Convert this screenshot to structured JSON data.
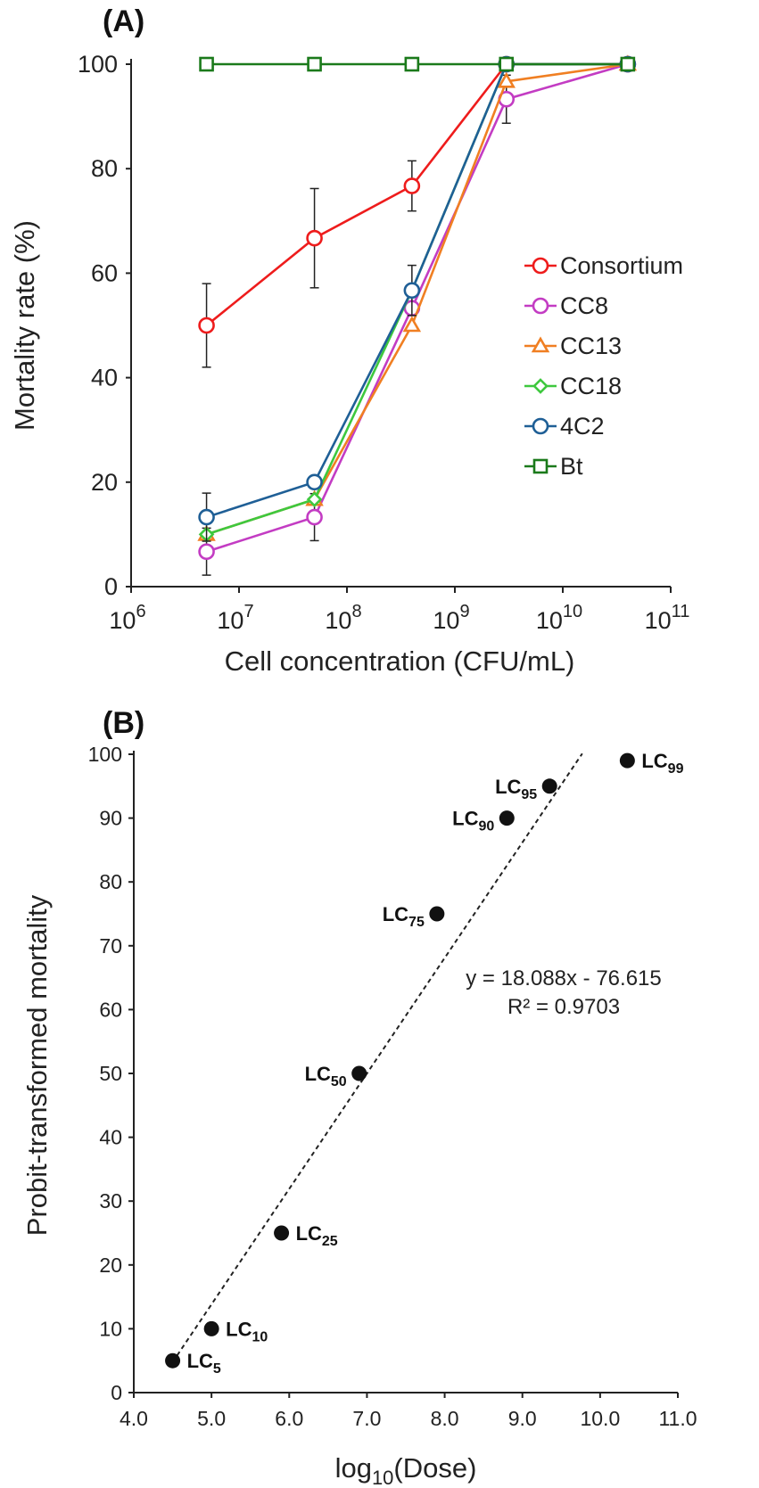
{
  "chart_data": [
    {
      "panel_label": "(A)",
      "type": "line",
      "xscale": "log10",
      "xlabel": "Cell concentration (CFU/mL)",
      "ylabel": "Mortality rate (%)",
      "xlim_exp": [
        6,
        11
      ],
      "xtick_base": "10",
      "xtick_exponents": [
        "6",
        "7",
        "8",
        "9",
        "10",
        "11"
      ],
      "ylim": [
        0,
        100
      ],
      "yticks": [
        "0",
        "20",
        "40",
        "60",
        "80",
        "100"
      ],
      "legend_position": "right",
      "x": [
        5000000,
        50000000,
        400000000,
        3000000000,
        40000000000
      ],
      "series": [
        {
          "name": "Consortium",
          "color": "#ee1c1c",
          "marker": "circle",
          "values": [
            50,
            66.7,
            76.7,
            100,
            100
          ],
          "errors": [
            8,
            9.5,
            4.8,
            0,
            0
          ]
        },
        {
          "name": "CC8",
          "color": "#c33cc3",
          "marker": "circle",
          "values": [
            6.7,
            13.3,
            53.3,
            93.3,
            100
          ],
          "errors": [
            4.5,
            4.5,
            0,
            4.6,
            0
          ]
        },
        {
          "name": "CC13",
          "color": "#f07f22",
          "marker": "triangle",
          "values": [
            10,
            16.7,
            50,
            96.7,
            100
          ],
          "errors": [
            0,
            0,
            0,
            0,
            0
          ]
        },
        {
          "name": "CC18",
          "color": "#3ec83e",
          "marker": "diamond",
          "values": [
            10,
            16.7,
            56.7,
            100,
            100
          ],
          "errors": [
            0,
            0,
            0,
            0,
            0
          ]
        },
        {
          "name": "4C2",
          "color": "#1f5f96",
          "marker": "circle",
          "values": [
            13.3,
            20,
            56.7,
            100,
            100
          ],
          "errors": [
            4.6,
            0,
            4.8,
            0,
            0
          ]
        },
        {
          "name": "Bt",
          "color": "#1b7a1b",
          "marker": "square",
          "values": [
            100,
            100,
            100,
            100,
            100
          ],
          "errors": [
            0,
            0,
            0,
            0,
            0
          ]
        }
      ]
    },
    {
      "panel_label": "(B)",
      "type": "scatter",
      "xlabel_base": "log",
      "xlabel_sub": "10",
      "xlabel_rest": "(Dose)",
      "ylabel": "Probit-transformed mortality",
      "xlim": [
        4.0,
        11.0
      ],
      "ylim": [
        0,
        100
      ],
      "xticks": [
        "4.0",
        "5.0",
        "6.0",
        "7.0",
        "8.0",
        "9.0",
        "10.0",
        "11.0"
      ],
      "yticks": [
        "0",
        "10",
        "20",
        "30",
        "40",
        "50",
        "60",
        "70",
        "80",
        "90",
        "100"
      ],
      "points": [
        {
          "label": "LC",
          "sub": "5",
          "x": 4.5,
          "y": 5,
          "side": "right"
        },
        {
          "label": "LC",
          "sub": "10",
          "x": 5.0,
          "y": 10,
          "side": "right"
        },
        {
          "label": "LC",
          "sub": "25",
          "x": 5.9,
          "y": 25,
          "side": "right"
        },
        {
          "label": "LC",
          "sub": "50",
          "x": 6.9,
          "y": 50,
          "side": "left"
        },
        {
          "label": "LC",
          "sub": "75",
          "x": 7.9,
          "y": 75,
          "side": "left"
        },
        {
          "label": "LC",
          "sub": "90",
          "x": 8.8,
          "y": 90,
          "side": "left"
        },
        {
          "label": "LC",
          "sub": "95",
          "x": 9.35,
          "y": 95,
          "side": "left"
        },
        {
          "label": "LC",
          "sub": "99",
          "x": 10.35,
          "y": 99,
          "side": "right"
        }
      ],
      "trendline": {
        "slope": 18.088,
        "intercept": -76.615,
        "x_range": [
          4.5,
          9.77
        ]
      },
      "equation": "y = 18.088x - 76.615",
      "r_squared": "R² = 0.9703"
    }
  ]
}
